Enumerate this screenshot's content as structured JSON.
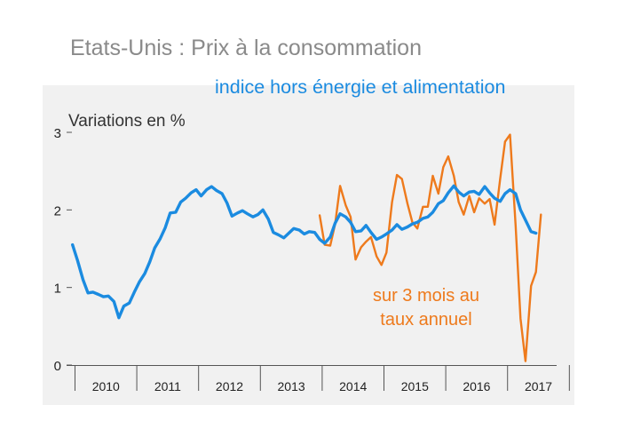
{
  "header": {
    "title": "Etats-Unis : Prix à la consommation",
    "subtitle": "indice hors énergie et alimentation"
  },
  "chart_data": {
    "type": "line",
    "ylabel": "Variations en %",
    "ylim": [
      0,
      3
    ],
    "yticks": [
      "0",
      "1",
      "2",
      "3"
    ],
    "xlim": [
      2009.95,
      2017.55
    ],
    "year_labels": [
      "2010",
      "2011",
      "2012",
      "2013",
      "2014",
      "2015",
      "2016",
      "2017"
    ],
    "annotation_lines": [
      "sur 3 mois au",
      "taux annuel"
    ],
    "grid": false,
    "colors": {
      "core": "#1b8be0",
      "three_month": "#ee7a1c",
      "panel": "#f1f1f1"
    },
    "series": [
      {
        "key": "core",
        "x": [
          2009.96,
          2010.04,
          2010.13,
          2010.21,
          2010.29,
          2010.38,
          2010.46,
          2010.54,
          2010.63,
          2010.71,
          2010.79,
          2010.88,
          2010.96,
          2011.04,
          2011.13,
          2011.21,
          2011.29,
          2011.38,
          2011.46,
          2011.54,
          2011.63,
          2011.71,
          2011.79,
          2011.88,
          2011.96,
          2012.04,
          2012.13,
          2012.21,
          2012.29,
          2012.38,
          2012.46,
          2012.54,
          2012.63,
          2012.71,
          2012.79,
          2012.88,
          2012.96,
          2013.04,
          2013.13,
          2013.21,
          2013.29,
          2013.38,
          2013.46,
          2013.54,
          2013.63,
          2013.71,
          2013.79,
          2013.88,
          2013.96,
          2014.04,
          2014.13,
          2014.21,
          2014.29,
          2014.38,
          2014.46,
          2014.54,
          2014.63,
          2014.71,
          2014.79,
          2014.88,
          2014.96,
          2015.04,
          2015.13,
          2015.21,
          2015.29,
          2015.38,
          2015.46,
          2015.54,
          2015.63,
          2015.71,
          2015.79,
          2015.88,
          2015.96,
          2016.04,
          2016.13,
          2016.21,
          2016.29,
          2016.38,
          2016.46,
          2016.54,
          2016.63,
          2016.71,
          2016.79,
          2016.88,
          2016.96,
          2017.04,
          2017.13,
          2017.21,
          2017.29,
          2017.38,
          2017.46
        ],
        "y": [
          1.55,
          1.35,
          1.1,
          0.93,
          0.94,
          0.91,
          0.88,
          0.89,
          0.82,
          0.61,
          0.76,
          0.8,
          0.94,
          1.07,
          1.18,
          1.33,
          1.51,
          1.63,
          1.77,
          1.96,
          1.97,
          2.1,
          2.15,
          2.22,
          2.26,
          2.18,
          2.26,
          2.3,
          2.25,
          2.21,
          2.09,
          1.92,
          1.96,
          1.99,
          1.95,
          1.91,
          1.94,
          2.0,
          1.88,
          1.71,
          1.68,
          1.64,
          1.7,
          1.76,
          1.74,
          1.69,
          1.72,
          1.71,
          1.62,
          1.57,
          1.65,
          1.83,
          1.95,
          1.91,
          1.84,
          1.72,
          1.73,
          1.8,
          1.71,
          1.62,
          1.65,
          1.69,
          1.74,
          1.81,
          1.75,
          1.78,
          1.82,
          1.84,
          1.89,
          1.91,
          1.97,
          2.08,
          2.12,
          2.22,
          2.31,
          2.23,
          2.18,
          2.23,
          2.24,
          2.2,
          2.3,
          2.22,
          2.15,
          2.11,
          2.21,
          2.26,
          2.21,
          2.0,
          1.87,
          1.72,
          1.7
        ]
      },
      {
        "key": "three_month",
        "x": [
          2013.96,
          2014.04,
          2014.13,
          2014.21,
          2014.29,
          2014.38,
          2014.46,
          2014.54,
          2014.63,
          2014.71,
          2014.79,
          2014.88,
          2014.96,
          2015.04,
          2015.13,
          2015.21,
          2015.29,
          2015.38,
          2015.46,
          2015.54,
          2015.63,
          2015.71,
          2015.79,
          2015.88,
          2015.96,
          2016.04,
          2016.13,
          2016.21,
          2016.29,
          2016.38,
          2016.46,
          2016.54,
          2016.63,
          2016.71,
          2016.79,
          2016.88,
          2016.96,
          2017.04,
          2017.13,
          2017.21,
          2017.29,
          2017.38,
          2017.46,
          2017.54
        ],
        "y": [
          1.93,
          1.55,
          1.54,
          1.82,
          2.31,
          2.06,
          1.91,
          1.36,
          1.52,
          1.59,
          1.65,
          1.4,
          1.29,
          1.45,
          2.1,
          2.45,
          2.4,
          2.08,
          1.84,
          1.76,
          2.04,
          2.04,
          2.44,
          2.21,
          2.55,
          2.69,
          2.44,
          2.1,
          1.94,
          2.18,
          1.97,
          2.15,
          2.08,
          2.14,
          1.81,
          2.4,
          2.88,
          2.97,
          1.8,
          0.6,
          0.05,
          1.02,
          1.2,
          1.94
        ]
      }
    ]
  }
}
